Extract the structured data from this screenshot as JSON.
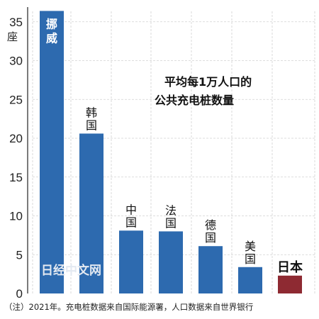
{
  "chart_data": {
    "type": "bar",
    "title": "平均每1万人口的\n公共充电桩数量",
    "ylabel": "座",
    "ylim": [
      0,
      37
    ],
    "yticks": [
      0,
      5,
      10,
      15,
      20,
      25,
      30,
      35
    ],
    "grid": true,
    "categories": [
      "挪威",
      "韩国",
      "中国",
      "法国",
      "德国",
      "美国",
      "日本"
    ],
    "values": [
      36.4,
      20.6,
      8.1,
      8.0,
      6.1,
      3.4,
      2.3
    ],
    "colors": [
      "#2d6aaf",
      "#2d6aaf",
      "#2d6aaf",
      "#2d6aaf",
      "#2d6aaf",
      "#2d6aaf",
      "#8e2a32"
    ],
    "highlight_category": "日本"
  },
  "watermark": "日经中文网",
  "footnote": "（注）2021年。充电桩数据来自国际能源署，人口数据来自世界银行"
}
